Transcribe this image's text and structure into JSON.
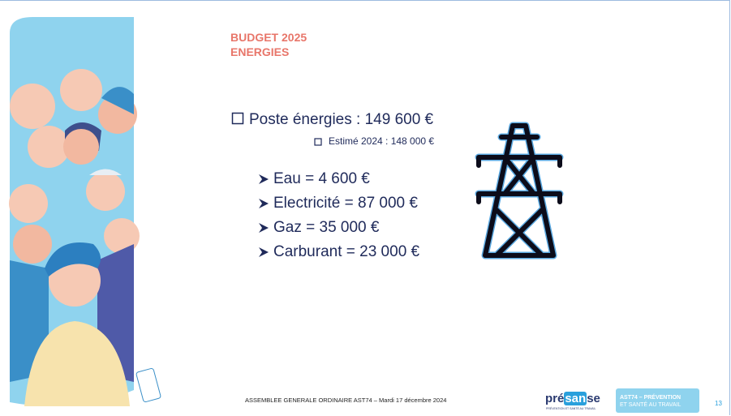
{
  "header": {
    "title_lines": [
      "BUDGET 2025",
      "ENERGIES"
    ]
  },
  "content": {
    "main_item": "Poste énergies : 149 600 €",
    "sub_item": "Estimé 2024 : 148 000 €",
    "items": [
      "Eau = 4 600 €",
      "Electricité = 87 000 €",
      "Gaz = 35 000 €",
      "Carburant = 23 000 €"
    ]
  },
  "footer": {
    "text": "ASSEMBLEE GENERALE ORDINAIRE AST74   – Mardi 17 décembre 2024",
    "page_number": "13",
    "logo_presanse": {
      "parts": [
        "pré",
        "san",
        "se"
      ],
      "tagline": "PRÉVENTION ET SANTÉ AU TRAVAIL"
    },
    "logo_ast74": {
      "lines": [
        "AST74 – PRÉVENTION",
        "ET SANTÉ AU TRAVAIL"
      ]
    }
  }
}
